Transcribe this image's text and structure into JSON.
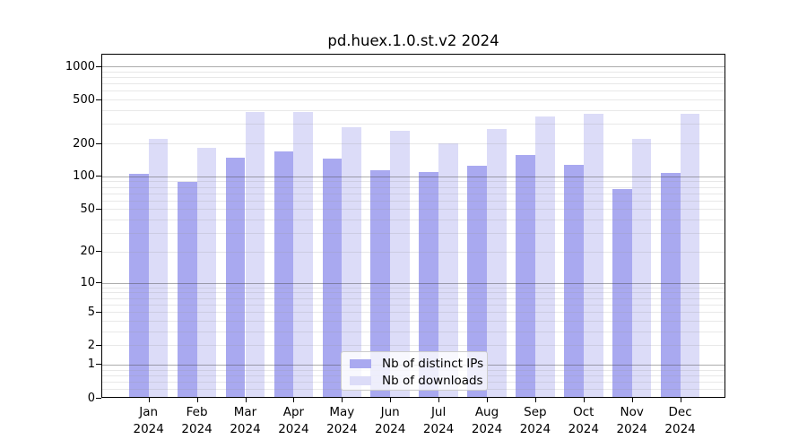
{
  "title": "pd.huex.1.0.st.v2 2024",
  "colors": {
    "distinct_ips_bar": "#a9a9f0",
    "downloads_bar": "#dcdcf8",
    "axis": "#000000",
    "grid_major": "#9d9d9d",
    "grid_minor": "#e4e4e4",
    "legend_border": "#cccccc"
  },
  "axis": {
    "months": [
      "Jan",
      "Feb",
      "Mar",
      "Apr",
      "May",
      "Jun",
      "Jul",
      "Aug",
      "Sep",
      "Oct",
      "Nov",
      "Dec"
    ],
    "year": "2024",
    "y_tick_labels": [
      "0",
      "1",
      "2",
      "5",
      "10",
      "20",
      "50",
      "100",
      "200",
      "500",
      "1000"
    ]
  },
  "legend": {
    "position": "bottom-center-inside",
    "items": [
      "Nb of distinct IPs",
      "Nb of downloads"
    ]
  },
  "chart_data": {
    "type": "bar",
    "title": "pd.huex.1.0.st.v2 2024",
    "xlabel": "",
    "ylabel": "",
    "yscale": "log1p",
    "ylim": [
      0,
      1300
    ],
    "y_ticks": [
      0,
      1,
      2,
      5,
      10,
      20,
      50,
      100,
      200,
      500,
      1000
    ],
    "grid": true,
    "legend_position": "bottom-center-inside",
    "categories": [
      "Jan 2024",
      "Feb 2024",
      "Mar 2024",
      "Apr 2024",
      "May 2024",
      "Jun 2024",
      "Jul 2024",
      "Aug 2024",
      "Sep 2024",
      "Oct 2024",
      "Nov 2024",
      "Dec 2024"
    ],
    "series": [
      {
        "name": "Nb of distinct IPs",
        "color": "#a9a9f0",
        "values": [
          106,
          89,
          148,
          170,
          145,
          114,
          110,
          126,
          158,
          127,
          77,
          108
        ]
      },
      {
        "name": "Nb of downloads",
        "color": "#dcdcf8",
        "values": [
          221,
          181,
          386,
          386,
          279,
          259,
          199,
          269,
          349,
          371,
          221,
          371
        ]
      }
    ]
  }
}
